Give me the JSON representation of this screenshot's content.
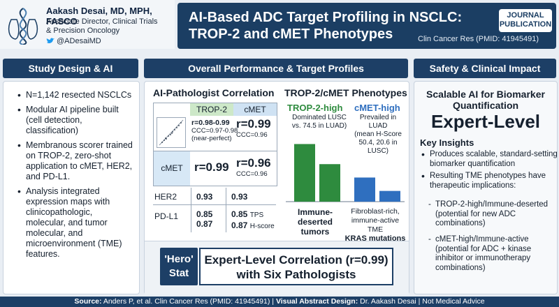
{
  "author": {
    "name": "Aakash Desai, MD, MPH, FASCO",
    "role_line1": "Associate Director, Clinical Trials",
    "role_line2": "& Precision Oncology",
    "handle": "@ADesaiMD"
  },
  "title": {
    "line1": "AI-Based ADC Target Profiling in NSCLC:",
    "line2": "TROP-2 and cMET Phenotypes"
  },
  "badge": {
    "line1": "JOURNAL",
    "line2": "PUBLICATION"
  },
  "citation": "Clin Cancer Res (PMID: 41945491)",
  "left": {
    "header": "Study Design & AI Methodology",
    "bullets": [
      "N=1,142 resected NSCLCs",
      "Modular AI pipeline built (cell detection, classification)",
      "Membranous scorer trained on TROP-2, zero-shot application to cMET, HER2, and PD-L1.",
      "Analysis integrated expression maps with clinicopathologic, molecular, and tumor molecular, and microenvironment (TME) features."
    ]
  },
  "middle": {
    "header": "Overall Performance & Target Profiles",
    "corr_title": "AI-Pathologist Correlation",
    "col_trop": "TROP-2",
    "col_cmet": "cMET",
    "r1_trop_r": "r=0.98-0.99",
    "r1_trop_ccc": "CCC=0.97-0.98",
    "r1_trop_note": "(near-perfect)",
    "r1_cmet_r": "r=0.99",
    "r1_cmet_ccc": "CCC=0.96",
    "r2_label": "cMET",
    "r2_trop_r": "r=0.99",
    "r2_cmet_r": "r=0.96",
    "r2_cmet_ccc": "CCC=0.96",
    "her2_label": "HER2",
    "her2_trop": "0.93",
    "her2_cmet": "0.93",
    "pdl1_label": "PD-L1",
    "pdl1_trop_1": "0.85",
    "pdl1_trop_2": "0.87",
    "pdl1_cmet_1": "0.85",
    "pdl1_cmet_1_unit": "TPS",
    "pdl1_cmet_2": "0.87",
    "pdl1_cmet_2_unit": "H-score",
    "pheno_title": "TROP-2/cMET Phenotypes",
    "trop_high": "TROP-2-high",
    "trop_desc1": "Dominated LUSC",
    "trop_desc2": "vs. 74.5 in LUAD)",
    "cmet_high": "cMET-high",
    "cmet_desc1": "Prevailed in",
    "cmet_desc2": "LUAD",
    "cmet_desc3": "(mean H-Score",
    "cmet_desc4": "50.4, 20.6 in LUSC)",
    "bar_left_label1": "Immune-",
    "bar_left_label2": "deserted",
    "bar_left_label3": "tumors",
    "bar_right_label1": "Fibroblast-rich,",
    "bar_right_label2": "immune-active TME",
    "bar_right_label3": "KRAS mutations",
    "hero_label1": "'Hero'",
    "hero_label2": "Stat",
    "hero_text1": "Expert-Level Correlation (r=0.99)",
    "hero_text2": "with Six Pathologists",
    "bar_values": {
      "green_tall": 0.86,
      "green_short": 0.56,
      "blue_tall": 0.36,
      "blue_short": 0.16
    },
    "colors": {
      "green": "#2e8b3e",
      "blue": "#2f6fbf"
    }
  },
  "right": {
    "header": "Safety & Clinical Impact",
    "scalable1": "Scalable AI for Biomarker",
    "scalable2": "Quantification",
    "expert": "Expert-Level",
    "insights_title": "Key Insights",
    "b1": "Produces scalable, standard-setting biomarker quantification",
    "b2": "Resulting TME phenotypes have therapeutic implications:",
    "s1": "TROP-2-high/Immune-deserted (potential for new ADC combinations)",
    "s2": "cMET-high/Immune-active (potential for ADC + kinase inhibitor or immunotherapy combinations)"
  },
  "footer": {
    "source_label": "Source:",
    "source_text": "Anders P, et al. Clin Cancer Res (PMID: 41945491)",
    "sep1": "|",
    "design_label": "Visual Abstract Design:",
    "design_text": "Dr. Aakash Desai",
    "sep2": "|",
    "disclaimer": "Not Medical Advice"
  }
}
